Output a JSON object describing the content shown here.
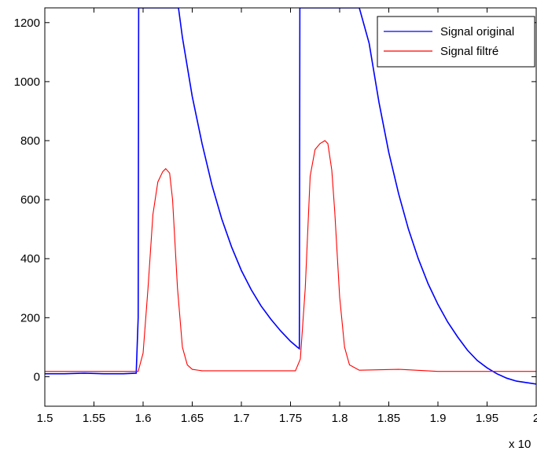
{
  "chart_data": {
    "type": "line",
    "title": "",
    "xlabel": "",
    "ylabel": "",
    "x_exponent_label": "x 10",
    "xlim": [
      1.5,
      2.0
    ],
    "ylim": [
      -100,
      1250
    ],
    "xticks": [
      1.5,
      1.55,
      1.6,
      1.65,
      1.7,
      1.75,
      1.8,
      1.85,
      1.9,
      1.95,
      2.0
    ],
    "xtick_labels": [
      "1.5",
      "1.55",
      "1.6",
      "1.65",
      "1.7",
      "1.75",
      "1.8",
      "1.85",
      "1.9",
      "1.95",
      "2"
    ],
    "yticks": [
      0,
      200,
      400,
      600,
      800,
      1000,
      1200
    ],
    "ytick_labels": [
      "0",
      "200",
      "400",
      "600",
      "800",
      "1000",
      "1200"
    ],
    "grid": false,
    "legend_position": "top-right",
    "series": [
      {
        "name": "Signal original",
        "color": "#0000ff",
        "x": [
          1.5,
          1.52,
          1.54,
          1.56,
          1.58,
          1.593,
          1.595,
          1.5955,
          1.636,
          1.64,
          1.65,
          1.66,
          1.67,
          1.68,
          1.69,
          1.7,
          1.71,
          1.72,
          1.73,
          1.74,
          1.75,
          1.757,
          1.759,
          1.7595,
          1.82,
          1.83,
          1.84,
          1.85,
          1.86,
          1.87,
          1.88,
          1.89,
          1.9,
          1.91,
          1.92,
          1.93,
          1.94,
          1.95,
          1.96,
          1.97,
          1.98,
          1.99,
          2.0
        ],
        "y": [
          10,
          10,
          12,
          10,
          10,
          12,
          200,
          1250,
          1250,
          1150,
          950,
          790,
          650,
          535,
          440,
          360,
          295,
          240,
          195,
          155,
          120,
          100,
          95,
          1250,
          1250,
          1130,
          930,
          760,
          620,
          500,
          400,
          315,
          245,
          185,
          135,
          90,
          55,
          30,
          10,
          -5,
          -15,
          -20,
          -25
        ]
      },
      {
        "name": "Signal filtré",
        "color": "#ff0000",
        "x": [
          1.5,
          1.595,
          1.6,
          1.605,
          1.61,
          1.615,
          1.62,
          1.623,
          1.627,
          1.63,
          1.635,
          1.64,
          1.645,
          1.65,
          1.66,
          1.7,
          1.75,
          1.755,
          1.76,
          1.765,
          1.77,
          1.775,
          1.78,
          1.785,
          1.788,
          1.792,
          1.795,
          1.8,
          1.805,
          1.81,
          1.82,
          1.86,
          1.9,
          1.95,
          2.0
        ],
        "y": [
          18,
          18,
          80,
          300,
          550,
          660,
          695,
          705,
          690,
          600,
          300,
          100,
          40,
          25,
          20,
          20,
          20,
          20,
          60,
          300,
          680,
          770,
          790,
          800,
          790,
          700,
          560,
          270,
          100,
          40,
          22,
          25,
          18,
          18,
          18
        ]
      }
    ]
  }
}
